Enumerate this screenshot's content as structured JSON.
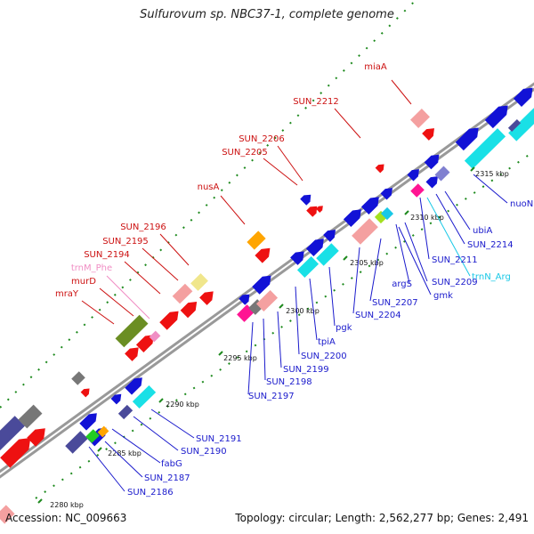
{
  "title": "Sulfurovum sp. NBC37-1, complete genome",
  "footer": {
    "accession": "Accession: NC_009663",
    "summary": "Topology: circular; Length: 2,562,277 bp; Genes: 2,491"
  },
  "colors": {
    "forward": "#1212d6",
    "reverse_red": "#ee1111",
    "rna_cyan": "#19e0e6",
    "trna_pink": "#f08ec4",
    "trna_cyan": "#19c8e6",
    "label_red": "#cc1111",
    "label_blue": "#1a1acc"
  },
  "kbp_ticks": [
    {
      "text": "2280 kbp"
    },
    {
      "text": "2285 kbp"
    },
    {
      "text": "2290 kbp"
    },
    {
      "text": "2295 kbp"
    },
    {
      "text": "2300 kbp"
    },
    {
      "text": "2305 kbp"
    },
    {
      "text": "2310 kbp"
    },
    {
      "text": "2315 kbp"
    }
  ],
  "gene_labels": [
    {
      "text": "miaA",
      "color": "red"
    },
    {
      "text": "SUN_2212",
      "color": "red"
    },
    {
      "text": "SUN_2206",
      "color": "red"
    },
    {
      "text": "SUN_2205",
      "color": "red"
    },
    {
      "text": "nusA",
      "color": "red"
    },
    {
      "text": "SUN_2196",
      "color": "red"
    },
    {
      "text": "SUN_2195",
      "color": "red"
    },
    {
      "text": "SUN_2194",
      "color": "red"
    },
    {
      "text": "trnM_Phe",
      "color": "pink"
    },
    {
      "text": "murD",
      "color": "red"
    },
    {
      "text": "mraY",
      "color": "red"
    },
    {
      "text": "nuoN",
      "color": "blue"
    },
    {
      "text": "ubiA",
      "color": "blue"
    },
    {
      "text": "SUN_2214",
      "color": "blue"
    },
    {
      "text": "trnN_Arg",
      "color": "cyan"
    },
    {
      "text": "SUN_2211",
      "color": "blue"
    },
    {
      "text": "argS",
      "color": "blue"
    },
    {
      "text": "SUN_2209",
      "color": "blue"
    },
    {
      "text": "gmk",
      "color": "blue"
    },
    {
      "text": "SUN_2207",
      "color": "blue"
    },
    {
      "text": "SUN_2204",
      "color": "blue"
    },
    {
      "text": "pgk",
      "color": "blue"
    },
    {
      "text": "tpiA",
      "color": "blue"
    },
    {
      "text": "SUN_2200",
      "color": "blue"
    },
    {
      "text": "SUN_2199",
      "color": "blue"
    },
    {
      "text": "SUN_2198",
      "color": "blue"
    },
    {
      "text": "SUN_2197",
      "color": "blue"
    },
    {
      "text": "SUN_2191",
      "color": "blue"
    },
    {
      "text": "SUN_2190",
      "color": "blue"
    },
    {
      "text": "fabG",
      "color": "blue"
    },
    {
      "text": "SUN_2187",
      "color": "blue"
    },
    {
      "text": "SUN_2186",
      "color": "blue"
    }
  ]
}
